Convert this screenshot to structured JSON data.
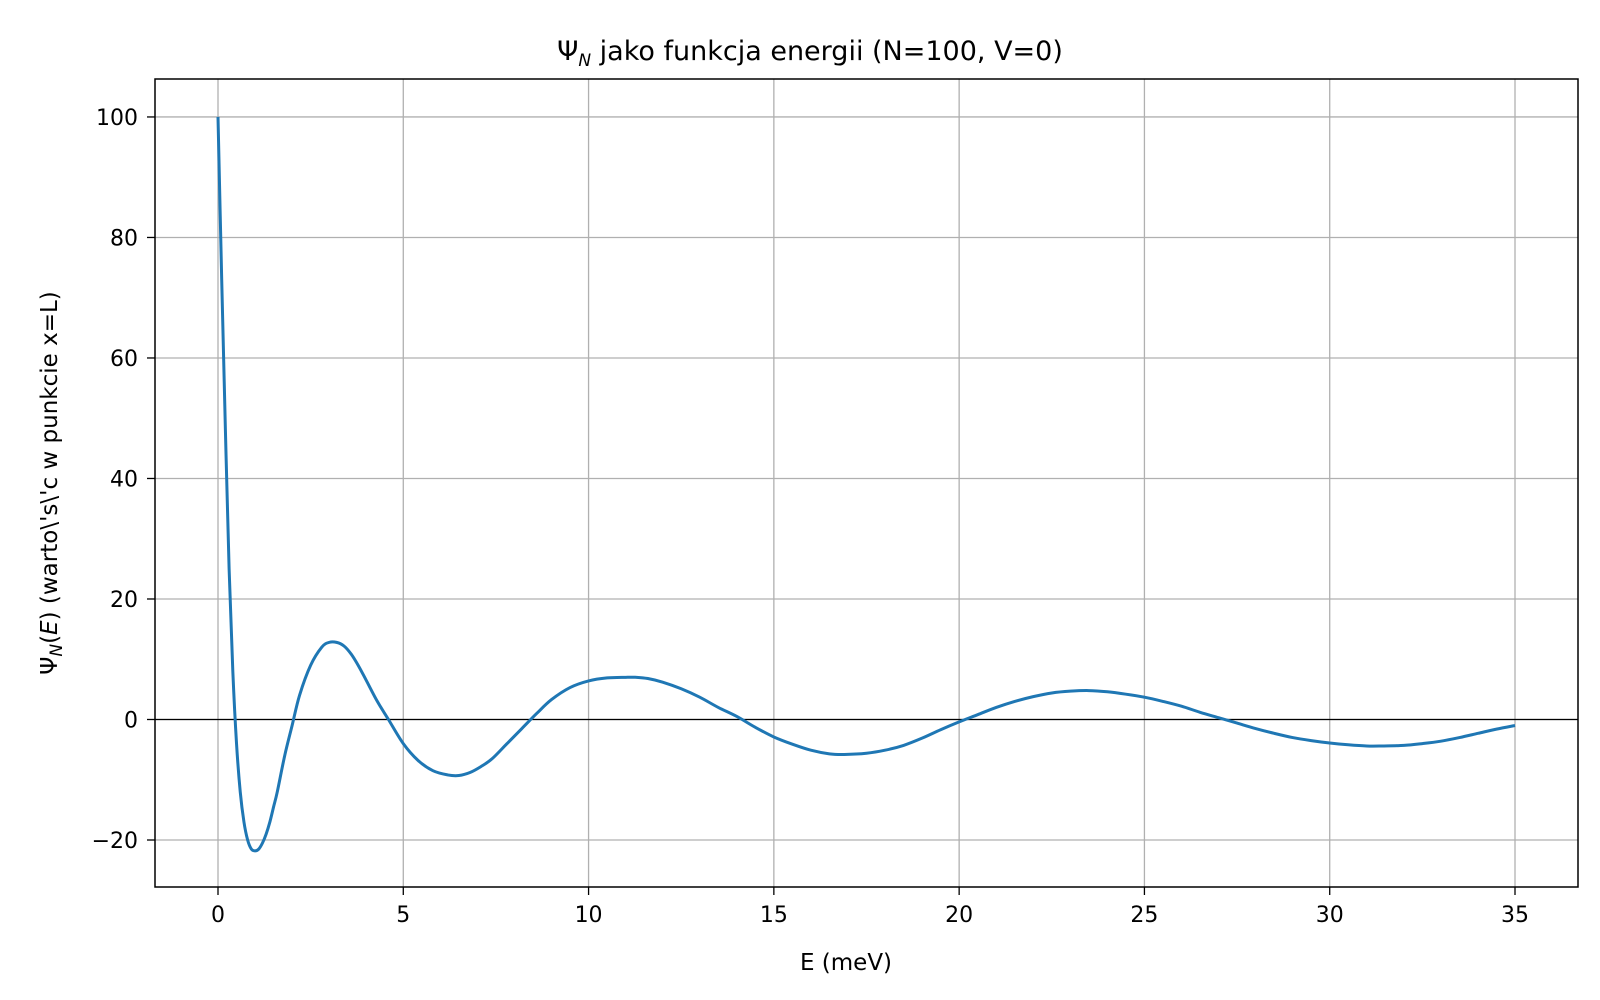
{
  "chart_data": {
    "type": "line",
    "title": {
      "main": "Ψ",
      "sub": "N",
      "rest": " jako funkcja energii (N=100, V=0)"
    },
    "xlabel": "E (meV)",
    "ylabel": {
      "psi": "Ψ",
      "sub": "N",
      "paren_open": "(",
      "var": "E",
      "rest": ") (warto\\'s\\'c w punkcie x=L)"
    },
    "xlim": [
      -1.7,
      36.7
    ],
    "ylim": [
      -27.8,
      106.3
    ],
    "xticks": [
      0,
      5,
      10,
      15,
      20,
      25,
      30,
      35
    ],
    "xtick_labels": [
      "0",
      "5",
      "10",
      "15",
      "20",
      "25",
      "30",
      "35"
    ],
    "yticks": [
      -20,
      0,
      20,
      40,
      60,
      80,
      100
    ],
    "ytick_labels": [
      "−20",
      "0",
      "20",
      "40",
      "60",
      "80",
      "100"
    ],
    "grid": true,
    "reference_line_y": 0,
    "line_color": "#1f77b4",
    "series": [
      {
        "x": [
          0,
          0.1,
          0.2,
          0.3,
          0.4,
          0.5,
          0.6,
          0.7,
          0.8,
          0.9,
          1.0,
          1.1,
          1.2,
          1.3,
          1.4,
          1.5,
          1.6,
          1.8,
          2.0,
          2.2,
          2.5,
          2.8,
          3.0,
          3.2,
          3.4,
          3.6,
          3.8,
          4.0,
          4.3,
          4.6,
          5.0,
          5.4,
          5.8,
          6.2,
          6.5,
          6.8,
          7.1,
          7.4,
          7.8,
          8.2,
          8.6,
          9.0,
          9.5,
          10.0,
          10.5,
          11.0,
          11.3,
          11.6,
          12.0,
          12.5,
          13.0,
          13.5,
          14.0,
          14.5,
          15.0,
          15.5,
          16.0,
          16.5,
          16.9,
          17.5,
          18.0,
          18.5,
          19.0,
          19.5,
          20.0,
          20.5,
          21.0,
          21.5,
          22.0,
          22.5,
          23.0,
          23.5,
          24.0,
          24.5,
          25.0,
          25.5,
          26.0,
          26.5,
          27.0,
          27.5,
          28.0,
          28.5,
          29.0,
          29.5,
          30.0,
          30.5,
          31.0,
          31.4,
          32.0,
          32.5,
          33.0,
          33.5,
          34.0,
          34.5,
          35.0
        ],
        "y": [
          100,
          73,
          48,
          25,
          8,
          -4,
          -12,
          -17,
          -20,
          -21.5,
          -21.8,
          -21.5,
          -20.5,
          -19,
          -17,
          -14.5,
          -12,
          -6,
          -1,
          4,
          9,
          12,
          12.8,
          12.8,
          12.2,
          10.8,
          8.8,
          6.5,
          3,
          0,
          -4,
          -6.8,
          -8.5,
          -9.2,
          -9.3,
          -8.8,
          -7.8,
          -6.5,
          -4,
          -1.5,
          1,
          3.3,
          5.3,
          6.4,
          6.9,
          7.0,
          7.0,
          6.8,
          6.2,
          5.1,
          3.7,
          2,
          0.5,
          -1.3,
          -2.9,
          -4.1,
          -5.1,
          -5.7,
          -5.8,
          -5.6,
          -5.1,
          -4.3,
          -3.1,
          -1.7,
          -0.4,
          0.8,
          2,
          3,
          3.8,
          4.4,
          4.7,
          4.8,
          4.6,
          4.2,
          3.7,
          3.0,
          2.2,
          1.2,
          0.3,
          -0.6,
          -1.5,
          -2.3,
          -3.0,
          -3.5,
          -3.9,
          -4.2,
          -4.4,
          -4.4,
          -4.3,
          -4.0,
          -3.6,
          -3.0,
          -2.3,
          -1.6,
          -1.0
        ]
      }
    ]
  }
}
